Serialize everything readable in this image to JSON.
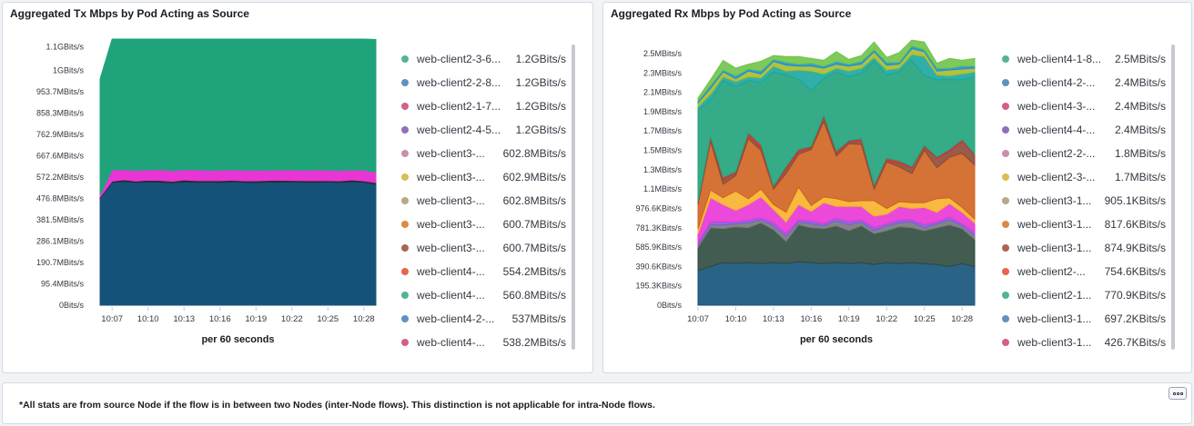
{
  "panels": {
    "tx": {
      "title": "Aggregated Tx Mbps by Pod Acting as Source",
      "legend": [
        {
          "label": "web-client2-3-6...",
          "value": "1.2GBits/s",
          "color": "#54b399"
        },
        {
          "label": "web-client2-2-8...",
          "value": "1.2GBits/s",
          "color": "#6092c0"
        },
        {
          "label": "web-client2-1-7...",
          "value": "1.2GBits/s",
          "color": "#d36086"
        },
        {
          "label": "web-client2-4-5...",
          "value": "1.2GBits/s",
          "color": "#9170b8"
        },
        {
          "label": "web-client3-...",
          "value": "602.8MBits/s",
          "color": "#ca8eae"
        },
        {
          "label": "web-client3-...",
          "value": "602.9MBits/s",
          "color": "#d6bf57"
        },
        {
          "label": "web-client3-...",
          "value": "602.8MBits/s",
          "color": "#b9a888"
        },
        {
          "label": "web-client3-...",
          "value": "600.7MBits/s",
          "color": "#da8b45"
        },
        {
          "label": "web-client3-...",
          "value": "600.7MBits/s",
          "color": "#aa6556"
        },
        {
          "label": "web-client4-...",
          "value": "554.2MBits/s",
          "color": "#e7664c"
        },
        {
          "label": "web-client4-...",
          "value": "560.8MBits/s",
          "color": "#54b399"
        },
        {
          "label": "web-client4-2-...",
          "value": "537MBits/s",
          "color": "#6092c0"
        },
        {
          "label": "web-client4-...",
          "value": "538.2MBits/s",
          "color": "#d36086"
        }
      ],
      "chart_data": {
        "type": "area",
        "stacked": true,
        "x": [
          "10:06",
          "10:07",
          "10:08",
          "10:09",
          "10:10",
          "10:11",
          "10:12",
          "10:13",
          "10:14",
          "10:15",
          "10:16",
          "10:17",
          "10:18",
          "10:19",
          "10:20",
          "10:21",
          "10:22",
          "10:23",
          "10:24",
          "10:25",
          "10:26",
          "10:27",
          "10:28",
          "10:29"
        ],
        "x_ticks": [
          "10:07",
          "10:10",
          "10:13",
          "10:16",
          "10:19",
          "10:22",
          "10:25",
          "10:28"
        ],
        "y_ticks": [
          "0Bits/s",
          "95.4MBits/s",
          "190.7MBits/s",
          "286.1MBits/s",
          "381.5MBits/s",
          "476.8MBits/s",
          "572.2MBits/s",
          "667.6MBits/s",
          "762.9MBits/s",
          "858.3MBits/s",
          "953.7MBits/s",
          "1GBits/s",
          "1.1GBits/s"
        ],
        "y_tick_values_mbps": [
          0,
          95.4,
          190.7,
          286.1,
          381.5,
          476.8,
          572.2,
          667.6,
          762.9,
          858.3,
          953.7,
          1048.6,
          1153.4
        ],
        "ylim_mbps": [
          0,
          1188
        ],
        "xlabel": "per 60 seconds",
        "series": [
          {
            "color": "#14527a",
            "values": [
              478,
              548,
              552,
              548,
              551,
              549,
              547,
              550,
              549,
              550,
              548,
              551,
              549,
              547,
              550,
              549,
              551,
              549,
              548,
              550,
              548,
              551,
              549,
              540
            ]
          },
          {
            "color": "#2b2b2b",
            "values": [
              5,
              6,
              8,
              6,
              7,
              8,
              6,
              9,
              7,
              6,
              8,
              7,
              6,
              8,
              7,
              9,
              6,
              7,
              8,
              6,
              7,
              8,
              6,
              7
            ]
          },
          {
            "color": "#e935d6",
            "values": [
              10,
              50,
              45,
              47,
              46,
              48,
              47,
              46,
              48,
              46,
              47,
              46,
              48,
              47,
              46,
              45,
              47,
              46,
              48,
              47,
              46,
              45,
              48,
              47
            ]
          },
          {
            "color": "#1fa37a",
            "values": [
              517,
              596,
              596,
              597,
              596,
              596,
              597,
              596,
              596,
              597,
              596,
              597,
              596,
              597,
              596,
              597,
              595,
              597,
              596,
              596,
              598,
              596,
              596,
              592
            ]
          }
        ]
      }
    },
    "rx": {
      "title": "Aggregated Rx Mbps by Pod Acting as Source",
      "legend": [
        {
          "label": "web-client4-1-8...",
          "value": "2.5MBits/s",
          "color": "#54b399"
        },
        {
          "label": "web-client4-2-...",
          "value": "2.4MBits/s",
          "color": "#6092c0"
        },
        {
          "label": "web-client4-3-...",
          "value": "2.4MBits/s",
          "color": "#d36086"
        },
        {
          "label": "web-client4-4-...",
          "value": "2.4MBits/s",
          "color": "#9170b8"
        },
        {
          "label": "web-client2-2-...",
          "value": "1.8MBits/s",
          "color": "#ca8eae"
        },
        {
          "label": "web-client2-3-...",
          "value": "1.7MBits/s",
          "color": "#d6bf57"
        },
        {
          "label": "web-client3-1...",
          "value": "905.1KBits/s",
          "color": "#b9a888"
        },
        {
          "label": "web-client3-1...",
          "value": "817.6KBits/s",
          "color": "#da8b45"
        },
        {
          "label": "web-client3-1...",
          "value": "874.9KBits/s",
          "color": "#aa6556"
        },
        {
          "label": "web-client2-...",
          "value": "754.6KBits/s",
          "color": "#e7664c"
        },
        {
          "label": "web-client2-1...",
          "value": "770.9KBits/s",
          "color": "#54b399"
        },
        {
          "label": "web-client3-1...",
          "value": "697.2KBits/s",
          "color": "#6092c0"
        },
        {
          "label": "web-client3-1...",
          "value": "426.7KBits/s",
          "color": "#d36086"
        }
      ],
      "chart_data": {
        "type": "area",
        "stacked": true,
        "x": [
          "10:07",
          "10:08",
          "10:09",
          "10:10",
          "10:11",
          "10:12",
          "10:13",
          "10:14",
          "10:15",
          "10:16",
          "10:17",
          "10:18",
          "10:19",
          "10:20",
          "10:21",
          "10:22",
          "10:23",
          "10:24",
          "10:25",
          "10:26",
          "10:27",
          "10:28",
          "10:29"
        ],
        "x_ticks": [
          "10:07",
          "10:10",
          "10:13",
          "10:16",
          "10:19",
          "10:22",
          "10:25",
          "10:28"
        ],
        "y_ticks": [
          "0Bits/s",
          "195.3KBits/s",
          "390.6KBits/s",
          "585.9KBits/s",
          "781.3KBits/s",
          "976.6KBits/s",
          "1.1MBits/s",
          "1.3MBits/s",
          "1.5MBits/s",
          "1.7MBits/s",
          "1.9MBits/s",
          "2.1MBits/s",
          "2.3MBits/s",
          "2.5MBits/s"
        ],
        "y_tick_values_mbps": [
          0,
          0.2,
          0.4,
          0.6,
          0.8,
          1.0,
          1.2,
          1.4,
          1.6,
          1.8,
          2.0,
          2.2,
          2.4,
          2.6
        ],
        "ylim_mbps": [
          0,
          2.75
        ],
        "xlabel": "per 60 seconds",
        "series": [
          {
            "color": "#14527a",
            "values": [
              0.36,
              0.4,
              0.44,
              0.43,
              0.44,
              0.43,
              0.44,
              0.43,
              0.45,
              0.44,
              0.43,
              0.44,
              0.43,
              0.44,
              0.42,
              0.44,
              0.43,
              0.44,
              0.43,
              0.42,
              0.4,
              0.43,
              0.4
            ]
          },
          {
            "color": "#2d4a3e",
            "values": [
              0.24,
              0.4,
              0.35,
              0.38,
              0.36,
              0.42,
              0.34,
              0.23,
              0.38,
              0.36,
              0.36,
              0.38,
              0.34,
              0.38,
              0.32,
              0.33,
              0.38,
              0.36,
              0.34,
              0.38,
              0.43,
              0.36,
              0.28
            ]
          },
          {
            "color": "#777777",
            "values": [
              0.02,
              0.03,
              0.04,
              0.03,
              0.05,
              0.03,
              0.04,
              0.05,
              0.03,
              0.04,
              0.03,
              0.05,
              0.06,
              0.04,
              0.03,
              0.05,
              0.04,
              0.06,
              0.03,
              0.04,
              0.05,
              0.03,
              0.04
            ]
          },
          {
            "color": "#7c5ce0",
            "values": [
              0.02,
              0.03,
              0.03,
              0.02,
              0.03,
              0.02,
              0.03,
              0.03,
              0.02,
              0.03,
              0.02,
              0.03,
              0.03,
              0.02,
              0.03,
              0.02,
              0.03,
              0.02,
              0.03,
              0.02,
              0.03,
              0.02,
              0.03
            ]
          },
          {
            "color": "#e935d6",
            "values": [
              0.1,
              0.25,
              0.18,
              0.12,
              0.16,
              0.22,
              0.14,
              0.12,
              0.16,
              0.1,
              0.22,
              0.12,
              0.16,
              0.14,
              0.12,
              0.1,
              0.14,
              0.12,
              0.18,
              0.1,
              0.14,
              0.12,
              0.1
            ]
          },
          {
            "color": "#f6b12a",
            "values": [
              0.05,
              0.08,
              0.07,
              0.2,
              0.06,
              0.08,
              0.05,
              0.1,
              0.18,
              0.06,
              0.06,
              0.08,
              0.05,
              0.06,
              0.16,
              0.06,
              0.05,
              0.06,
              0.05,
              0.14,
              0.06,
              0.05,
              0.04
            ]
          },
          {
            "color": "#d0631f",
            "values": [
              0.25,
              0.5,
              0.14,
              0.16,
              0.62,
              0.4,
              0.16,
              0.4,
              0.34,
              0.58,
              0.78,
              0.44,
              0.6,
              0.58,
              0.12,
              0.48,
              0.36,
              0.3,
              0.54,
              0.32,
              0.42,
              0.56,
              0.56
            ]
          },
          {
            "color": "#8e4a36",
            "values": [
              0.02,
              0.03,
              0.05,
              0.03,
              0.04,
              0.03,
              0.02,
              0.05,
              0.03,
              0.02,
              0.04,
              0.03,
              0.02,
              0.04,
              0.03,
              0.02,
              0.04,
              0.06,
              0.03,
              0.1,
              0.06,
              0.12,
              0.1
            ]
          },
          {
            "color": "#d92b2b",
            "values": [
              0.01,
              0.02,
              0.02,
              0.01,
              0.02,
              0.03,
              0.01,
              0.02,
              0.02,
              0.01,
              0.02,
              0.02,
              0.01,
              0.02,
              0.01,
              0.02,
              0.02,
              0.01,
              0.02,
              0.01,
              0.02,
              0.02,
              0.01
            ]
          },
          {
            "color": "#1fa37a",
            "values": [
              0.95,
              0.38,
              1.0,
              0.88,
              0.54,
              0.64,
              1.18,
              0.95,
              0.72,
              0.58,
              0.38,
              0.82,
              0.66,
              0.68,
              1.28,
              0.86,
              0.92,
              1.1,
              0.72,
              0.8,
              0.72,
              0.62,
              0.8
            ]
          },
          {
            "color": "#19a6a0",
            "values": [
              0.03,
              0.06,
              0.04,
              0.05,
              0.04,
              0.05,
              0.06,
              0.04,
              0.1,
              0.2,
              0.05,
              0.04,
              0.06,
              0.05,
              0.04,
              0.05,
              0.04,
              0.06,
              0.2,
              0.05,
              0.04,
              0.06,
              0.05
            ]
          },
          {
            "color": "#a7bc2a",
            "values": [
              0.04,
              0.06,
              0.05,
              0.03,
              0.06,
              0.04,
              0.05,
              0.06,
              0.04,
              0.05,
              0.06,
              0.04,
              0.05,
              0.04,
              0.06,
              0.05,
              0.04,
              0.06,
              0.05,
              0.04,
              0.06,
              0.05,
              0.04
            ]
          },
          {
            "color": "#1e8fd4",
            "values": [
              0.02,
              0.03,
              0.02,
              0.03,
              0.02,
              0.03,
              0.02,
              0.03,
              0.02,
              0.03,
              0.02,
              0.03,
              0.02,
              0.03,
              0.02,
              0.03,
              0.02,
              0.03,
              0.02,
              0.03,
              0.02,
              0.03,
              0.02
            ]
          },
          {
            "color": "#6fc449",
            "values": [
              0.03,
              0.06,
              0.1,
              0.08,
              0.05,
              0.1,
              0.04,
              0.06,
              0.08,
              0.05,
              0.06,
              0.1,
              0.05,
              0.06,
              0.08,
              0.05,
              0.1,
              0.06,
              0.08,
              0.05,
              0.1,
              0.06,
              0.08
            ]
          }
        ]
      }
    }
  },
  "footer": {
    "note": "*All stats are from source Node if the flow is in between two Nodes (inter-Node flows). This distinction is not applicable for intra-Node flows.",
    "options_icon": "options-icon"
  }
}
